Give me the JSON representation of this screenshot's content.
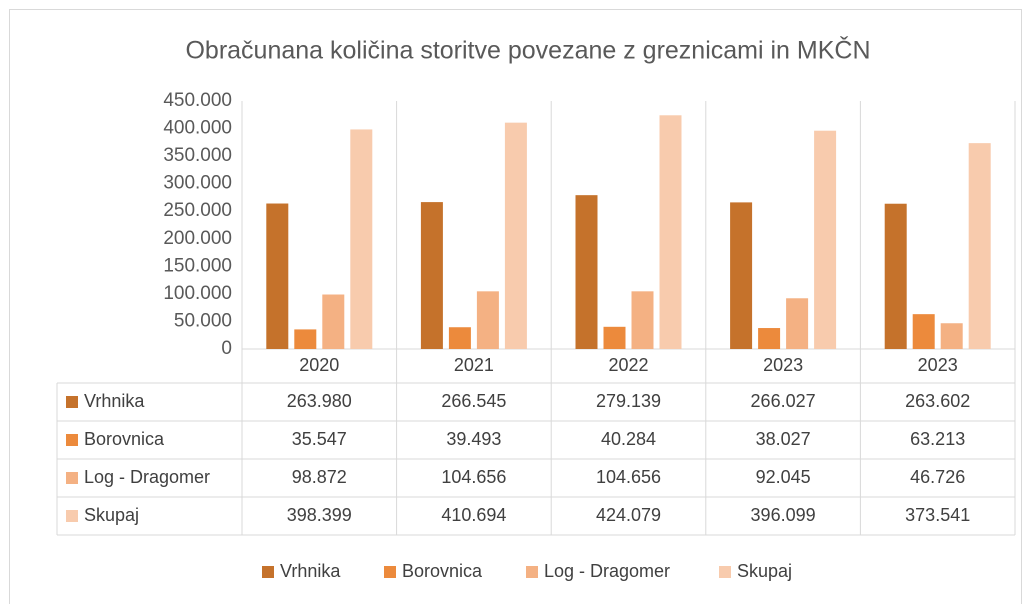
{
  "chart_data": {
    "type": "bar",
    "title": "Obračunana količina storitve povezane z greznicami in MKČN",
    "categories": [
      "2020",
      "2021",
      "2022",
      "2023",
      "2023"
    ],
    "series": [
      {
        "name": "Vrhnika",
        "color": "#c5722b",
        "values": [
          263980,
          266545,
          279139,
          266027,
          263602
        ],
        "value_labels": [
          "263.980",
          "266.545",
          "279.139",
          "266.027",
          "263.602"
        ]
      },
      {
        "name": "Borovnica",
        "color": "#ec8a3c",
        "values": [
          35547,
          39493,
          40284,
          38027,
          63213
        ],
        "value_labels": [
          "35.547",
          "39.493",
          "40.284",
          "38.027",
          "63.213"
        ]
      },
      {
        "name": "Log - Dragomer",
        "color": "#f4b183",
        "values": [
          98872,
          104656,
          104656,
          92045,
          46726
        ],
        "value_labels": [
          "98.872",
          "104.656",
          "104.656",
          "92.045",
          "46.726"
        ]
      },
      {
        "name": "Skupaj",
        "color": "#f8cbad",
        "values": [
          398399,
          410694,
          424079,
          396099,
          373541
        ],
        "value_labels": [
          "398.399",
          "410.694",
          "424.079",
          "396.099",
          "373.541"
        ]
      }
    ],
    "ylim": [
      0,
      450000
    ],
    "yticks": [
      0,
      {
        "value": 50000,
        "label": "50.000"
      },
      {
        "value": 100000,
        "label": "100.000"
      },
      {
        "value": 150000,
        "label": "150.000"
      },
      {
        "value": 200000,
        "label": "200.000"
      },
      {
        "value": 250000,
        "label": "250.000"
      },
      {
        "value": 300000,
        "label": "300.000"
      },
      {
        "value": 350000,
        "label": "350.000"
      },
      {
        "value": 400000,
        "label": "400.000"
      },
      {
        "value": 450000,
        "label": "450.000"
      }
    ],
    "legend": "bottom"
  }
}
